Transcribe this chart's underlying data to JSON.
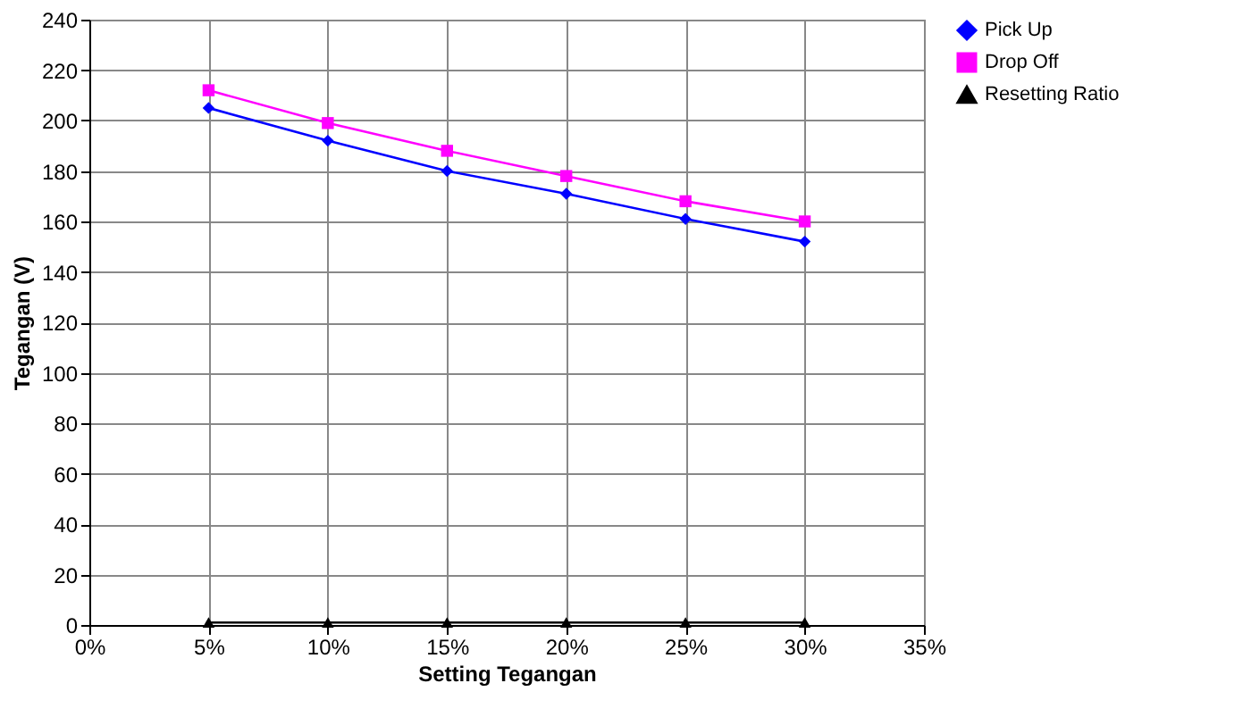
{
  "chart_data": {
    "type": "line",
    "xlabel": "Setting Tegangan",
    "ylabel": "Tegangan (V)",
    "x": [
      5,
      10,
      15,
      20,
      25,
      30
    ],
    "series": [
      {
        "name": "Pick Up",
        "color": "#0000ff",
        "marker": "diamond",
        "values": [
          205,
          192,
          180,
          171,
          161,
          152
        ]
      },
      {
        "name": "Drop Off",
        "color": "#ff00ff",
        "marker": "square",
        "values": [
          212,
          199,
          188,
          178,
          168,
          160
        ]
      },
      {
        "name": "Resetting Ratio",
        "color": "#000000",
        "marker": "triangle",
        "values": [
          1,
          1,
          1,
          1,
          1,
          1
        ]
      }
    ],
    "xlim": [
      0,
      35
    ],
    "xticks": [
      {
        "value": 0,
        "label": "0%"
      },
      {
        "value": 5,
        "label": "5%"
      },
      {
        "value": 10,
        "label": "10%"
      },
      {
        "value": 15,
        "label": "15%"
      },
      {
        "value": 20,
        "label": "20%"
      },
      {
        "value": 25,
        "label": "25%"
      },
      {
        "value": 30,
        "label": "30%"
      },
      {
        "value": 35,
        "label": "35%"
      }
    ],
    "ylim": [
      0,
      240
    ],
    "yticks": [
      0,
      20,
      40,
      60,
      80,
      100,
      120,
      140,
      160,
      180,
      200,
      220,
      240
    ],
    "grid": true,
    "legend": "right",
    "line_style": "solid"
  }
}
